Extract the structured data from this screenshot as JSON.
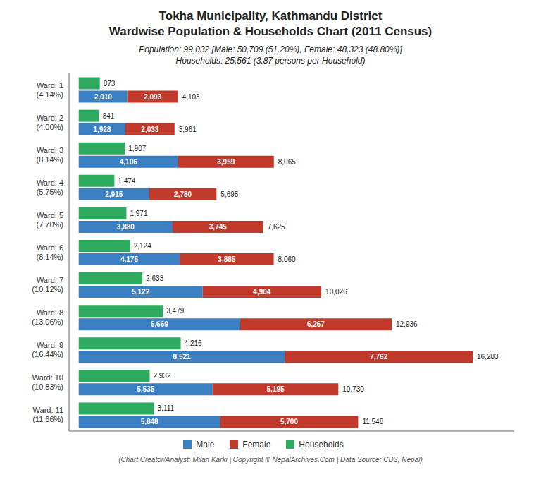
{
  "chart_data": {
    "type": "bar",
    "orientation": "horizontal",
    "title": "Tokha Municipality, Kathmandu District\nWardwise Population & Households Chart (2011 Census)",
    "subtitle": "Population: 99,032 [Male: 50,709 (51.20%), Female: 48,323 (48.80%)]\nHouseholds: 25,561 (3.87 persons per Household)",
    "footer": "(Chart Creator/Analyst: Milan Karki | Copyright © NepalArchives.Com | Data Source: CBS, Nepal)",
    "categories": [
      "Ward: 1\n(4.14%)",
      "Ward: 2\n(4.00%)",
      "Ward: 3\n(8.14%)",
      "Ward: 4\n(5.75%)",
      "Ward: 5\n(7.70%)",
      "Ward: 6\n(8.14%)",
      "Ward: 7\n(10.12%)",
      "Ward: 8\n(13.06%)",
      "Ward: 9\n(16.44%)",
      "Ward: 10\n(10.83%)",
      "Ward: 11\n(11.66%)"
    ],
    "series": [
      {
        "name": "Male",
        "color": "#3a7fc1",
        "stacked": true,
        "values": [
          2010,
          1928,
          4106,
          2915,
          3880,
          4175,
          5122,
          6669,
          8521,
          5535,
          5848
        ],
        "value_labels": [
          "2,010",
          "1,928",
          "4,106",
          "2,915",
          "3,880",
          "4,175",
          "5,122",
          "6,669",
          "8,521",
          "5,535",
          "5,848"
        ]
      },
      {
        "name": "Female",
        "color": "#c0392b",
        "stacked": true,
        "values": [
          2093,
          2033,
          3959,
          2780,
          3745,
          3885,
          4904,
          6267,
          7762,
          5195,
          5700
        ],
        "value_labels": [
          "2,093",
          "2,033",
          "3,959",
          "2,780",
          "3,745",
          "3,885",
          "4,904",
          "6,267",
          "7,762",
          "5,195",
          "5,700"
        ]
      },
      {
        "name": "Households",
        "color": "#2eaa5e",
        "stacked": false,
        "values": [
          873,
          841,
          1907,
          1474,
          1971,
          2124,
          2633,
          3479,
          4216,
          2932,
          3111
        ],
        "value_labels": [
          "873",
          "841",
          "1,907",
          "1,474",
          "1,971",
          "2,124",
          "2,633",
          "3,479",
          "4,216",
          "2,932",
          "3,111"
        ]
      }
    ],
    "totals": [
      4103,
      3961,
      8065,
      5695,
      7625,
      8060,
      10026,
      12936,
      16283,
      10730,
      11548
    ],
    "total_labels": [
      "4,103",
      "3,961",
      "8,065",
      "5,695",
      "7,625",
      "8,060",
      "10,026",
      "12,936",
      "16,283",
      "10,730",
      "11,548"
    ],
    "xlim": [
      -400,
      18000
    ],
    "data_labels": true,
    "tick_labels": "y",
    "grid": false,
    "legend": "bottom"
  }
}
